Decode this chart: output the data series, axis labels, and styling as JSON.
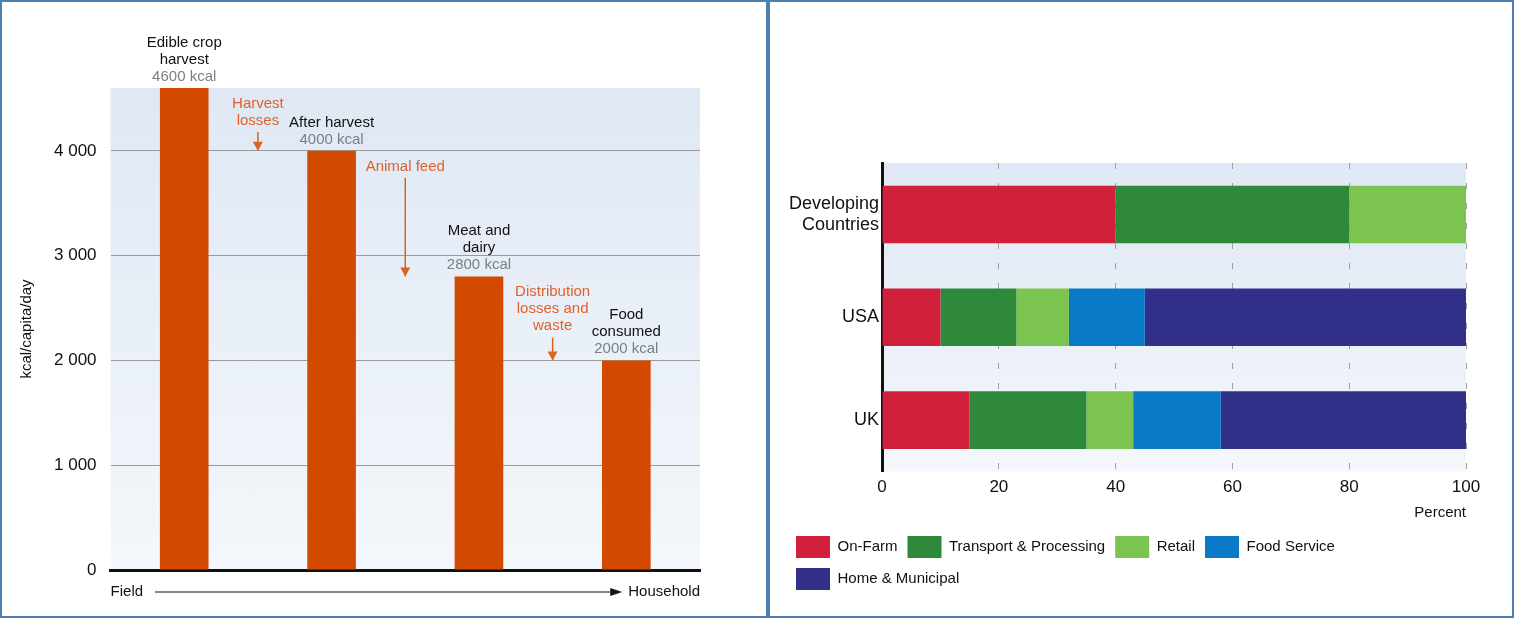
{
  "chart_data": [
    {
      "type": "bar",
      "ylabel": "kcal/capita/day",
      "categories": [
        "Edible crop harvest",
        "After harvest",
        "Meat and dairy",
        "Food consumed"
      ],
      "values": [
        4600,
        4000,
        2800,
        2000
      ],
      "value_labels": [
        "4600 kcal",
        "4000 kcal",
        "2800 kcal",
        "2000 kcal"
      ],
      "color": "#d24a00",
      "ylim": [
        0,
        4600
      ],
      "yticks": [
        {
          "value": 0,
          "label": "0"
        },
        {
          "value": 1000,
          "label": "1 000"
        },
        {
          "value": 2000,
          "label": "2 000"
        },
        {
          "value": 3000,
          "label": "3 000"
        },
        {
          "value": 4000,
          "label": "4 000"
        }
      ],
      "grid": "y",
      "legend": false,
      "annotations": [
        "Harvest losses",
        "Animal feed",
        "Distribution losses and waste",
        "Field",
        "Household"
      ]
    },
    {
      "type": "bar",
      "orientation": "horizontal",
      "stacked": true,
      "xlabel": "Percent",
      "categories": [
        "Developing Countries",
        "USA",
        "UK"
      ],
      "xlim": [
        0,
        100
      ],
      "xticks": [
        0,
        20,
        40,
        60,
        80,
        100
      ],
      "grid": "x",
      "legend": "bottom",
      "series": [
        {
          "name": "On-Farm",
          "color": "#d0203c",
          "values": [
            40,
            10,
            15
          ]
        },
        {
          "name": "Transport & Processing",
          "color": "#2e8a3a",
          "values": [
            40,
            13,
            20
          ]
        },
        {
          "name": "Retail",
          "color": "#7cc450",
          "values": [
            20,
            9,
            8
          ]
        },
        {
          "name": "Food Service",
          "color": "#0a7ac8",
          "values": [
            0,
            13,
            15
          ]
        },
        {
          "name": "Home & Municipal",
          "color": "#33308a",
          "values": [
            0,
            55,
            42
          ]
        }
      ]
    }
  ]
}
